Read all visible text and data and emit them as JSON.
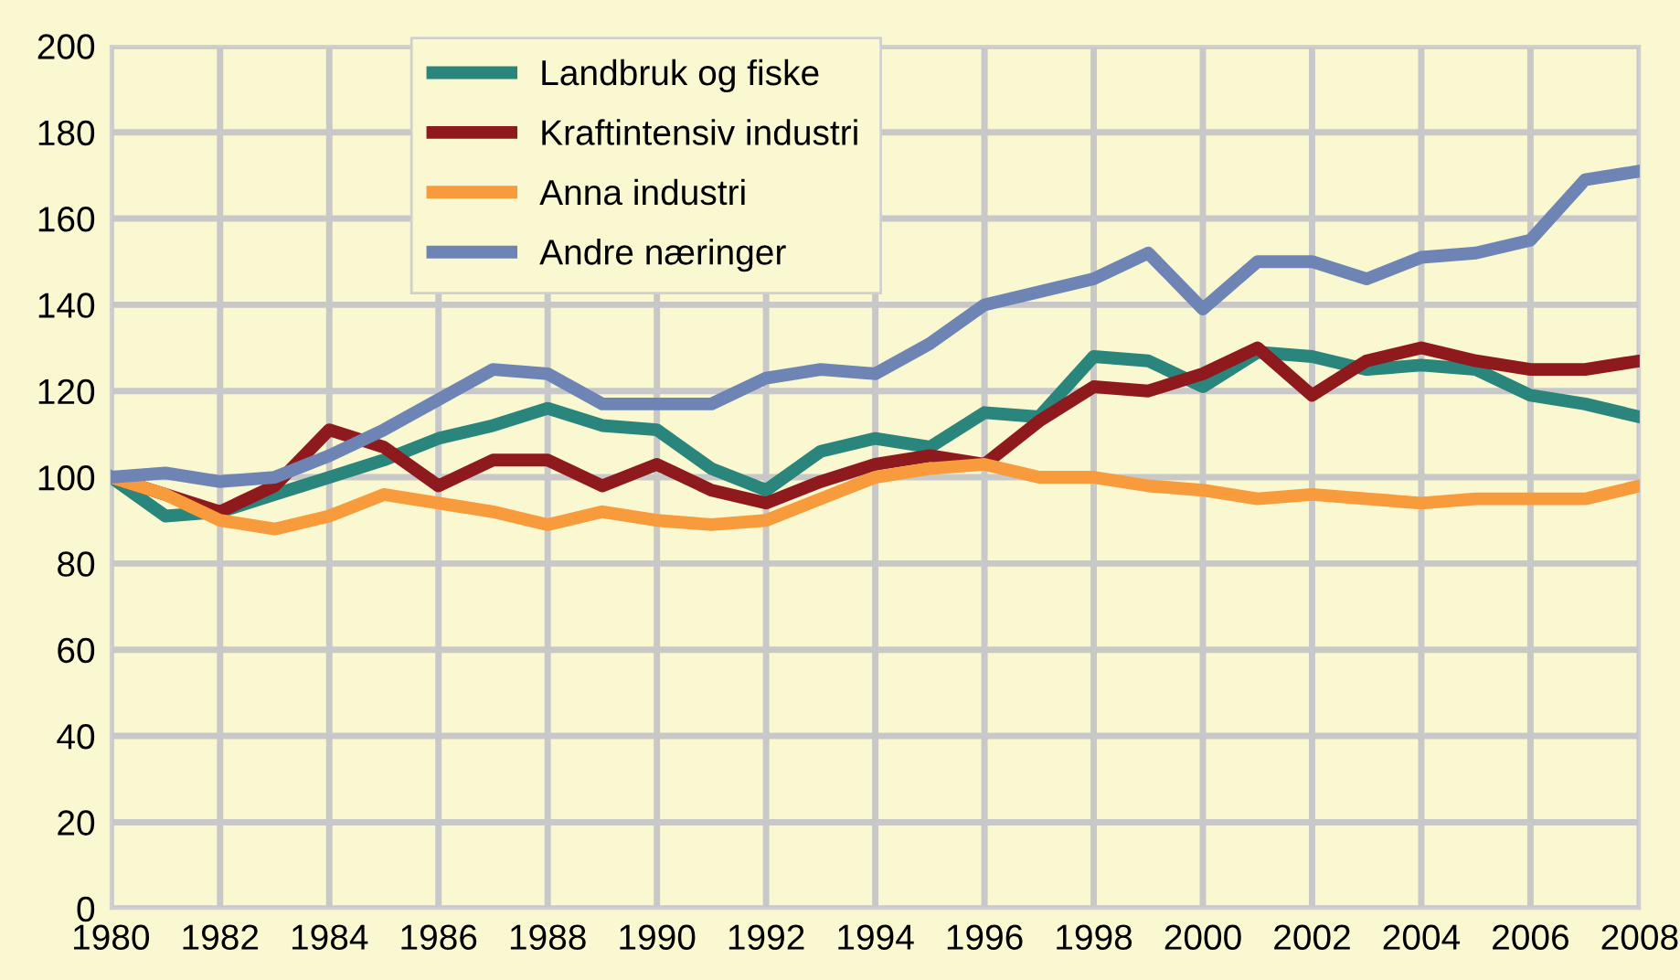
{
  "chart_data": {
    "type": "line",
    "x": [
      1980,
      1981,
      1982,
      1983,
      1984,
      1985,
      1986,
      1987,
      1988,
      1989,
      1990,
      1991,
      1992,
      1993,
      1994,
      1995,
      1996,
      1997,
      1998,
      1999,
      2000,
      2001,
      2002,
      2003,
      2004,
      2005,
      2006,
      2007,
      2008
    ],
    "series": [
      {
        "name": "Landbruk og fiske",
        "color": "#2a857c",
        "values": [
          100,
          91,
          92,
          96,
          100,
          104,
          109,
          112,
          116,
          112,
          111,
          102,
          97,
          106,
          109,
          107,
          115,
          114,
          128,
          127,
          121,
          129,
          128,
          125,
          126,
          125,
          119,
          117,
          114
        ]
      },
      {
        "name": "Kraftintensiv industri",
        "color": "#8f1a1e",
        "values": [
          100,
          96,
          92,
          98,
          111,
          107,
          98,
          104,
          104,
          98,
          103,
          97,
          94,
          99,
          103,
          105,
          103,
          113,
          121,
          120,
          124,
          130,
          119,
          127,
          130,
          127,
          125,
          125,
          127
        ]
      },
      {
        "name": "Anna industri",
        "color": "#f79b3c",
        "values": [
          100,
          96,
          90,
          88,
          91,
          96,
          94,
          92,
          89,
          92,
          90,
          89,
          90,
          95,
          100,
          102,
          103,
          100,
          100,
          98,
          97,
          95,
          96,
          95,
          94,
          95,
          95,
          95,
          98
        ]
      },
      {
        "name": "Andre næringer",
        "color": "#6d84b5",
        "values": [
          100,
          101,
          99,
          100,
          105,
          111,
          118,
          125,
          124,
          117,
          117,
          117,
          123,
          125,
          124,
          131,
          140,
          143,
          146,
          152,
          139,
          150,
          150,
          146,
          151,
          152,
          155,
          169,
          171
        ]
      }
    ],
    "xlim": [
      1980,
      2008
    ],
    "xticks": [
      1980,
      1982,
      1984,
      1986,
      1988,
      1990,
      1992,
      1994,
      1996,
      1998,
      2000,
      2002,
      2004,
      2006,
      2008
    ],
    "ylim": [
      0,
      200
    ],
    "yticks": [
      0,
      20,
      40,
      60,
      80,
      100,
      120,
      140,
      160,
      180,
      200
    ],
    "grid": true,
    "legend": "top left",
    "marker": "none",
    "line_style": "solid"
  }
}
